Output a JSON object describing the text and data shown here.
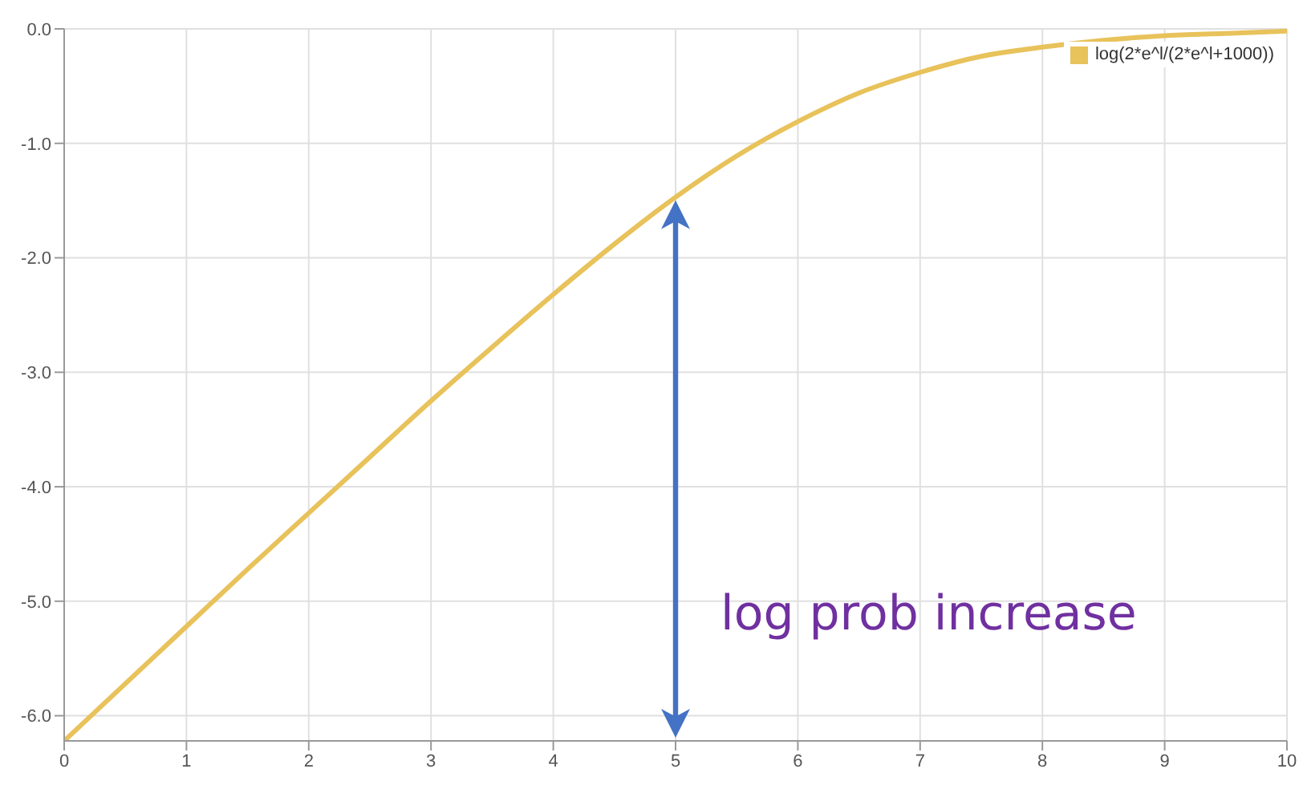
{
  "chart_data": {
    "type": "line",
    "x": [
      0,
      0.5,
      1,
      1.5,
      2,
      2.5,
      3,
      3.5,
      4,
      4.5,
      5,
      5.5,
      6,
      6.5,
      7,
      7.5,
      8,
      8.5,
      9,
      9.5,
      10
    ],
    "series": [
      {
        "name": "log(2*e^l/(2*e^l+1000))",
        "color": "#e8c25a",
        "values": [
          -6.22,
          -5.72,
          -5.22,
          -4.72,
          -4.23,
          -3.74,
          -3.25,
          -2.78,
          -2.32,
          -1.88,
          -1.47,
          -1.11,
          -0.81,
          -0.56,
          -0.38,
          -0.24,
          -0.16,
          -0.1,
          -0.06,
          -0.04,
          -0.02
        ]
      }
    ],
    "xlim": [
      0,
      10
    ],
    "xticks": [
      0,
      1,
      2,
      3,
      4,
      5,
      6,
      7,
      8,
      9,
      10
    ],
    "ylim": [
      -6.22,
      0
    ],
    "yticks": [
      {
        "value": 0,
        "label": "0.0"
      },
      {
        "value": -1,
        "label": "-1.0"
      },
      {
        "value": -2,
        "label": "-2.0"
      },
      {
        "value": -3,
        "label": "-3.0"
      },
      {
        "value": -4,
        "label": "-4.0"
      },
      {
        "value": -5,
        "label": "-5.0"
      },
      {
        "value": -6,
        "label": "-6.0"
      }
    ],
    "annotations": [
      "log prob increase"
    ],
    "grid": true,
    "legend": "top right",
    "marker": "none",
    "line_style": "solid"
  }
}
